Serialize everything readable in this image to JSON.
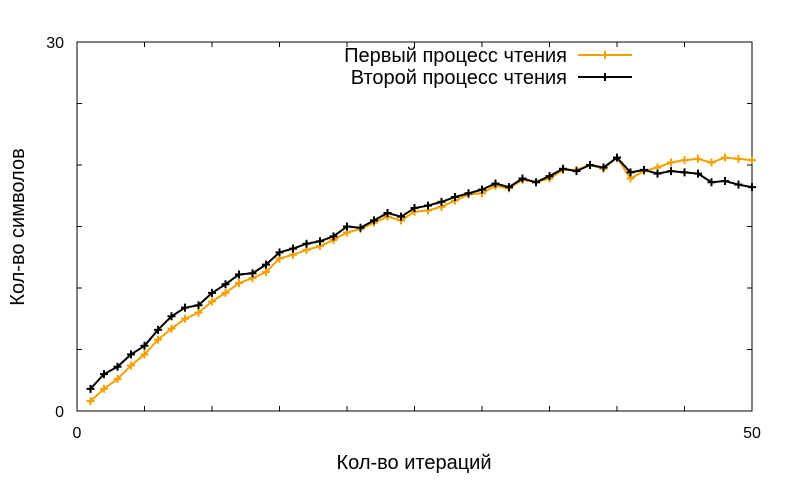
{
  "chart_data": {
    "type": "line",
    "title": "",
    "xlabel": "Кол-во итераций",
    "ylabel": "Кол-во символов",
    "xlim": [
      0,
      50
    ],
    "ylim": [
      0,
      30
    ],
    "xticks": [
      0,
      50
    ],
    "yticks": [
      0,
      30
    ],
    "xtick_labels": [
      "0",
      "50"
    ],
    "ytick_labels": [
      "0",
      "30"
    ],
    "grid": false,
    "legend_position": "top-right",
    "x": [
      1,
      2,
      3,
      4,
      5,
      6,
      7,
      8,
      9,
      10,
      11,
      12,
      13,
      14,
      15,
      16,
      17,
      18,
      19,
      20,
      21,
      22,
      23,
      24,
      25,
      26,
      27,
      28,
      29,
      30,
      31,
      32,
      33,
      34,
      35,
      36,
      37,
      38,
      39,
      40,
      41,
      42,
      43,
      44,
      45,
      46,
      47,
      48,
      49,
      50
    ],
    "series": [
      {
        "name": "Первый процесс чтения",
        "color": "#f4a000",
        "values": [
          0.8,
          1.8,
          2.6,
          3.7,
          4.6,
          5.8,
          6.7,
          7.5,
          8.0,
          8.9,
          9.6,
          10.4,
          10.8,
          11.3,
          12.4,
          12.7,
          13.1,
          13.4,
          13.9,
          14.5,
          14.8,
          15.3,
          15.8,
          15.5,
          16.2,
          16.3,
          16.6,
          17.1,
          17.6,
          17.7,
          18.3,
          18.1,
          18.8,
          18.6,
          18.9,
          19.6,
          19.6,
          20.0,
          19.7,
          20.6,
          18.9,
          19.5,
          19.8,
          20.2,
          20.4,
          20.5,
          20.2,
          20.6,
          20.5,
          20.4
        ]
      },
      {
        "name": "Второй процесс чтения",
        "color": "#000000",
        "values": [
          1.8,
          3.0,
          3.6,
          4.6,
          5.3,
          6.6,
          7.7,
          8.4,
          8.6,
          9.6,
          10.3,
          11.1,
          11.2,
          11.9,
          12.9,
          13.2,
          13.6,
          13.8,
          14.2,
          15.0,
          14.9,
          15.5,
          16.1,
          15.8,
          16.5,
          16.7,
          17.0,
          17.4,
          17.7,
          18.0,
          18.5,
          18.2,
          18.9,
          18.6,
          19.1,
          19.7,
          19.5,
          20.0,
          19.8,
          20.6,
          19.4,
          19.6,
          19.3,
          19.5,
          19.4,
          19.3,
          18.6,
          18.7,
          18.4,
          18.2
        ]
      }
    ]
  }
}
